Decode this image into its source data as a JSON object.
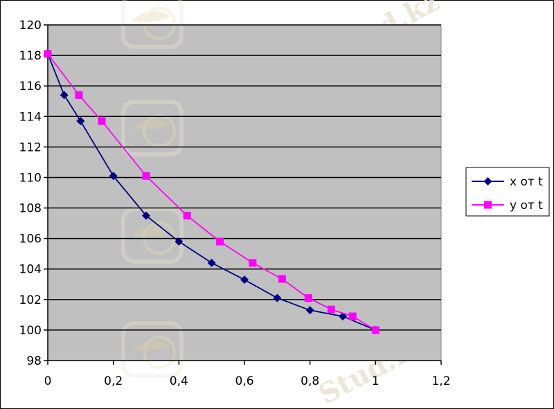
{
  "chart_data": {
    "type": "line",
    "title": "",
    "xlabel": "",
    "ylabel": "",
    "xlim": [
      0,
      1.2
    ],
    "ylim": [
      98,
      120
    ],
    "x_ticks": [
      "0",
      "0,2",
      "0,4",
      "0,6",
      "0,8",
      "1",
      "1,2"
    ],
    "y_ticks": [
      "98",
      "100",
      "102",
      "104",
      "106",
      "108",
      "110",
      "112",
      "114",
      "116",
      "118",
      "120"
    ],
    "grid": "horizontal",
    "plot_background": "#c0c0c0",
    "legend_position": "right",
    "series": [
      {
        "name": "x от t",
        "color": "#000080",
        "marker": "diamond",
        "points": [
          [
            0,
            118.1
          ],
          [
            0.05,
            115.4
          ],
          [
            0.1,
            113.7
          ],
          [
            0.2,
            110.1
          ],
          [
            0.3,
            107.5
          ],
          [
            0.4,
            105.8
          ],
          [
            0.5,
            104.4
          ],
          [
            0.6,
            103.3
          ],
          [
            0.7,
            102.1
          ],
          [
            0.8,
            101.3
          ],
          [
            0.9,
            100.9
          ],
          [
            1.0,
            100.0
          ]
        ]
      },
      {
        "name": "y от t",
        "color": "#ff00ff",
        "marker": "square",
        "points": [
          [
            0,
            118.1
          ],
          [
            0.095,
            115.4
          ],
          [
            0.165,
            113.7
          ],
          [
            0.3,
            110.1
          ],
          [
            0.425,
            107.5
          ],
          [
            0.525,
            105.8
          ],
          [
            0.625,
            104.4
          ],
          [
            0.715,
            103.35
          ],
          [
            0.795,
            102.1
          ],
          [
            0.865,
            101.35
          ],
          [
            0.93,
            100.9
          ],
          [
            1.0,
            100.0
          ]
        ]
      }
    ]
  },
  "watermark": {
    "text": "Stud.kz - Stud.kz",
    "footer_text": "Stud.kz"
  }
}
